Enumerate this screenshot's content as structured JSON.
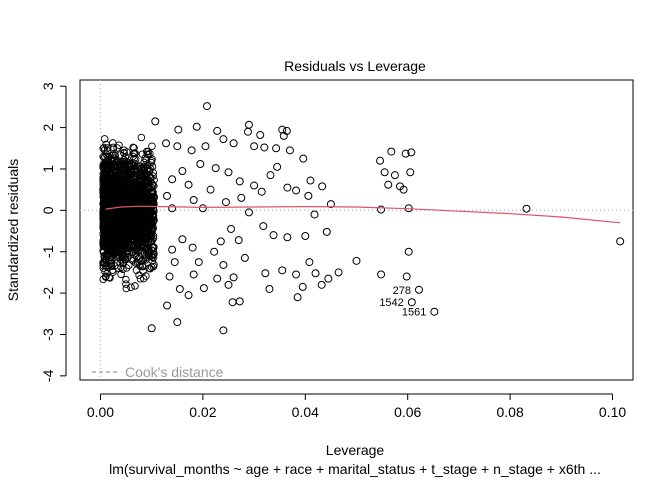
{
  "chart_data": {
    "type": "scatter",
    "title": "Residuals vs Leverage",
    "xlabel": "Leverage",
    "ylabel": "Standardized residuals",
    "subtitle": "lm(survival_months ~ age + race + marital_status + t_stage + n_stage + x6th ...",
    "xlim": [
      -0.004,
      0.104
    ],
    "ylim": [
      -4.1,
      3.15
    ],
    "x_ticks": [
      0.0,
      0.02,
      0.04,
      0.06,
      0.08,
      0.1
    ],
    "x_tick_labels": [
      "0.00",
      "0.02",
      "0.04",
      "0.06",
      "0.08",
      "0.10"
    ],
    "y_ticks": [
      -4,
      -3,
      -2,
      -1,
      0,
      1,
      2,
      3
    ],
    "y_tick_labels": [
      "-4",
      "-3",
      "-2",
      "-1",
      "0",
      "1",
      "2",
      "3"
    ],
    "grid": false,
    "reference_lines": {
      "horizontal_y": 0,
      "vertical_x": 0,
      "style": "dotted",
      "color": "#bebebe"
    },
    "legend": {
      "entries": [
        "Cook's distance"
      ],
      "placement": "bottom-left",
      "line_style": "dashed",
      "color": "#9a9a9a"
    },
    "marker": "open-circle",
    "dense_cluster": {
      "x_range": [
        0.0005,
        0.0105
      ],
      "y_range": [
        -3.3,
        2.3
      ],
      "description_note": ""
    },
    "points": [
      {
        "x": 0.0208,
        "y": 2.52
      },
      {
        "x": 0.0107,
        "y": 2.15
      },
      {
        "x": 0.0152,
        "y": 1.95
      },
      {
        "x": 0.0188,
        "y": 2.02
      },
      {
        "x": 0.0228,
        "y": 1.92
      },
      {
        "x": 0.029,
        "y": 2.07
      },
      {
        "x": 0.0288,
        "y": 1.9
      },
      {
        "x": 0.0312,
        "y": 1.82
      },
      {
        "x": 0.0355,
        "y": 1.95
      },
      {
        "x": 0.0364,
        "y": 1.92
      },
      {
        "x": 0.0358,
        "y": 1.8
      },
      {
        "x": 0.024,
        "y": 1.72
      },
      {
        "x": 0.026,
        "y": 1.62
      },
      {
        "x": 0.0205,
        "y": 1.55
      },
      {
        "x": 0.0178,
        "y": 1.45
      },
      {
        "x": 0.015,
        "y": 1.55
      },
      {
        "x": 0.0128,
        "y": 1.62
      },
      {
        "x": 0.03,
        "y": 1.55
      },
      {
        "x": 0.032,
        "y": 1.52
      },
      {
        "x": 0.0343,
        "y": 1.5
      },
      {
        "x": 0.037,
        "y": 1.45
      },
      {
        "x": 0.0396,
        "y": 1.25
      },
      {
        "x": 0.0345,
        "y": 1.05
      },
      {
        "x": 0.0332,
        "y": 0.85
      },
      {
        "x": 0.0365,
        "y": 0.55
      },
      {
        "x": 0.0382,
        "y": 0.48
      },
      {
        "x": 0.041,
        "y": 0.72
      },
      {
        "x": 0.0406,
        "y": 0.35
      },
      {
        "x": 0.0195,
        "y": 1.12
      },
      {
        "x": 0.0225,
        "y": 1.02
      },
      {
        "x": 0.025,
        "y": 0.92
      },
      {
        "x": 0.0272,
        "y": 0.7
      },
      {
        "x": 0.03,
        "y": 0.6
      },
      {
        "x": 0.0315,
        "y": 0.45
      },
      {
        "x": 0.0275,
        "y": 0.3
      },
      {
        "x": 0.0245,
        "y": 0.2
      },
      {
        "x": 0.016,
        "y": 0.95
      },
      {
        "x": 0.0172,
        "y": 0.62
      },
      {
        "x": 0.014,
        "y": 0.75
      },
      {
        "x": 0.0215,
        "y": 0.5
      },
      {
        "x": 0.0182,
        "y": 0.25
      },
      {
        "x": 0.013,
        "y": 0.35
      },
      {
        "x": 0.014,
        "y": 0.05
      },
      {
        "x": 0.02,
        "y": 0.05
      },
      {
        "x": 0.029,
        "y": -0.05
      },
      {
        "x": 0.0318,
        "y": -0.38
      },
      {
        "x": 0.0338,
        "y": -0.6
      },
      {
        "x": 0.0365,
        "y": -0.65
      },
      {
        "x": 0.04,
        "y": -0.62
      },
      {
        "x": 0.0255,
        "y": -0.45
      },
      {
        "x": 0.0235,
        "y": -0.75
      },
      {
        "x": 0.027,
        "y": -0.72
      },
      {
        "x": 0.0222,
        "y": -1.0
      },
      {
        "x": 0.018,
        "y": -0.9
      },
      {
        "x": 0.016,
        "y": -0.7
      },
      {
        "x": 0.014,
        "y": -0.95
      },
      {
        "x": 0.0145,
        "y": -1.25
      },
      {
        "x": 0.0192,
        "y": -1.25
      },
      {
        "x": 0.024,
        "y": -1.32
      },
      {
        "x": 0.0282,
        "y": -1.15
      },
      {
        "x": 0.0322,
        "y": -1.52
      },
      {
        "x": 0.0355,
        "y": -1.45
      },
      {
        "x": 0.026,
        "y": -1.62
      },
      {
        "x": 0.0228,
        "y": -1.65
      },
      {
        "x": 0.0182,
        "y": -1.55
      },
      {
        "x": 0.0135,
        "y": -1.6
      },
      {
        "x": 0.0155,
        "y": -1.9
      },
      {
        "x": 0.0202,
        "y": -1.88
      },
      {
        "x": 0.025,
        "y": -1.8
      },
      {
        "x": 0.033,
        "y": -1.9
      },
      {
        "x": 0.0385,
        "y": -2.1
      },
      {
        "x": 0.0382,
        "y": -1.55
      },
      {
        "x": 0.0395,
        "y": -1.85
      },
      {
        "x": 0.0408,
        "y": -1.25
      },
      {
        "x": 0.042,
        "y": -1.52
      },
      {
        "x": 0.0432,
        "y": -1.8
      },
      {
        "x": 0.0445,
        "y": -1.65
      },
      {
        "x": 0.0465,
        "y": -1.5
      },
      {
        "x": 0.05,
        "y": -1.22
      },
      {
        "x": 0.0442,
        "y": -0.52
      },
      {
        "x": 0.0418,
        "y": -0.1
      },
      {
        "x": 0.045,
        "y": 0.15
      },
      {
        "x": 0.0433,
        "y": 0.58
      },
      {
        "x": 0.0272,
        "y": -2.2
      },
      {
        "x": 0.0258,
        "y": -2.22
      },
      {
        "x": 0.024,
        "y": -2.9
      },
      {
        "x": 0.013,
        "y": -2.3
      },
      {
        "x": 0.0172,
        "y": -2.05
      },
      {
        "x": 0.015,
        "y": -2.7
      },
      {
        "x": 0.01,
        "y": -2.85
      },
      {
        "x": 0.0546,
        "y": 1.2
      },
      {
        "x": 0.0555,
        "y": 0.92
      },
      {
        "x": 0.0562,
        "y": 0.62
      },
      {
        "x": 0.0575,
        "y": 0.85
      },
      {
        "x": 0.0585,
        "y": 0.58
      },
      {
        "x": 0.0592,
        "y": 0.5
      },
      {
        "x": 0.0605,
        "y": 0.92
      },
      {
        "x": 0.0568,
        "y": 1.42
      },
      {
        "x": 0.0596,
        "y": 1.37
      },
      {
        "x": 0.0607,
        "y": 1.4
      },
      {
        "x": 0.0602,
        "y": 0.05
      },
      {
        "x": 0.0548,
        "y": 0.02
      },
      {
        "x": 0.0602,
        "y": -1.0
      },
      {
        "x": 0.0598,
        "y": -1.6
      },
      {
        "x": 0.0548,
        "y": -1.55
      },
      {
        "x": 0.0622,
        "y": -1.92
      },
      {
        "x": 0.0608,
        "y": -2.22
      },
      {
        "x": 0.0652,
        "y": -2.45
      },
      {
        "x": 0.0832,
        "y": 0.04
      },
      {
        "x": 0.1015,
        "y": -0.75
      }
    ],
    "smoother": {
      "color": "#df536b",
      "x": [
        0.001,
        0.004,
        0.008,
        0.012,
        0.016,
        0.02,
        0.03,
        0.04,
        0.05,
        0.06,
        0.07,
        0.08,
        0.09,
        0.1015
      ],
      "y": [
        0.03,
        0.08,
        0.1,
        0.09,
        0.08,
        0.07,
        0.08,
        0.09,
        0.08,
        0.04,
        -0.02,
        -0.08,
        -0.16,
        -0.3
      ]
    },
    "annotations": [
      {
        "text": "278",
        "x": 0.0622,
        "y": -1.92
      },
      {
        "text": "1542",
        "x": 0.0608,
        "y": -2.22
      },
      {
        "text": "1561",
        "x": 0.0652,
        "y": -2.45
      }
    ]
  }
}
